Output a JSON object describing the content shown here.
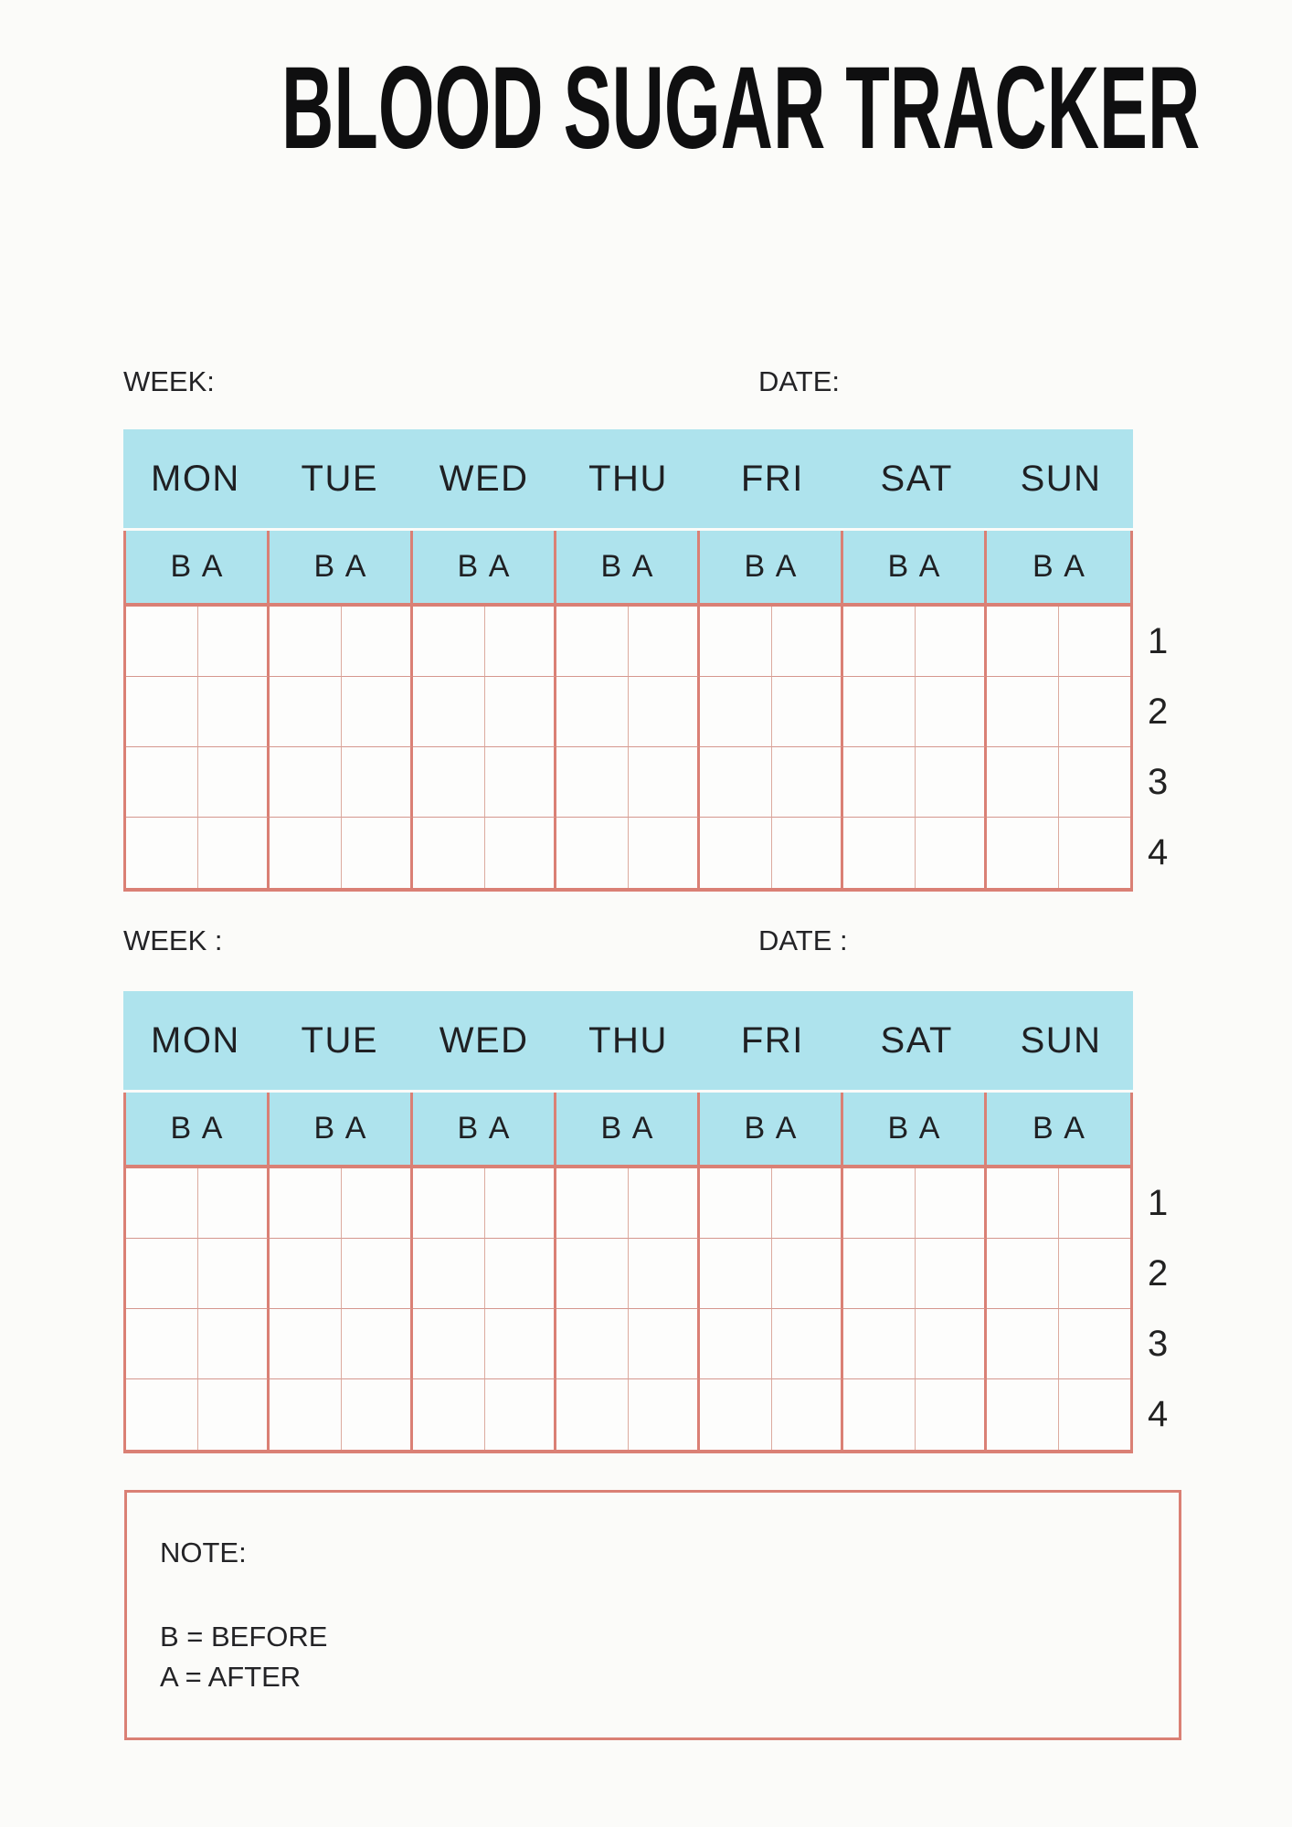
{
  "page": {
    "title": "BLOOD SUGAR TRACKER"
  },
  "colors": {
    "header_fill": "#aee3ed",
    "border_strong": "#da8075",
    "border_light": "#dcab9f",
    "row_line": "#d5978e",
    "page_background": "#fbfbf9",
    "title_color": "#0f0f10",
    "text": "#232326"
  },
  "sections": [
    {
      "week_label": "WEEK:",
      "date_label": "DATE:",
      "days": [
        "MON",
        "TUE",
        "WED",
        "THU",
        "FRI",
        "SAT",
        "SUN"
      ],
      "ba_label": "B A",
      "row_numbers": [
        "1",
        "2",
        "3",
        "4"
      ]
    },
    {
      "week_label": "WEEK :",
      "date_label": "DATE :",
      "days": [
        "MON",
        "TUE",
        "WED",
        "THU",
        "FRI",
        "SAT",
        "SUN"
      ],
      "ba_label": "B A",
      "row_numbers": [
        "1",
        "2",
        "3",
        "4"
      ]
    }
  ],
  "note": {
    "label": "NOTE:",
    "line1": "B = BEFORE",
    "line2": "A = AFTER"
  }
}
